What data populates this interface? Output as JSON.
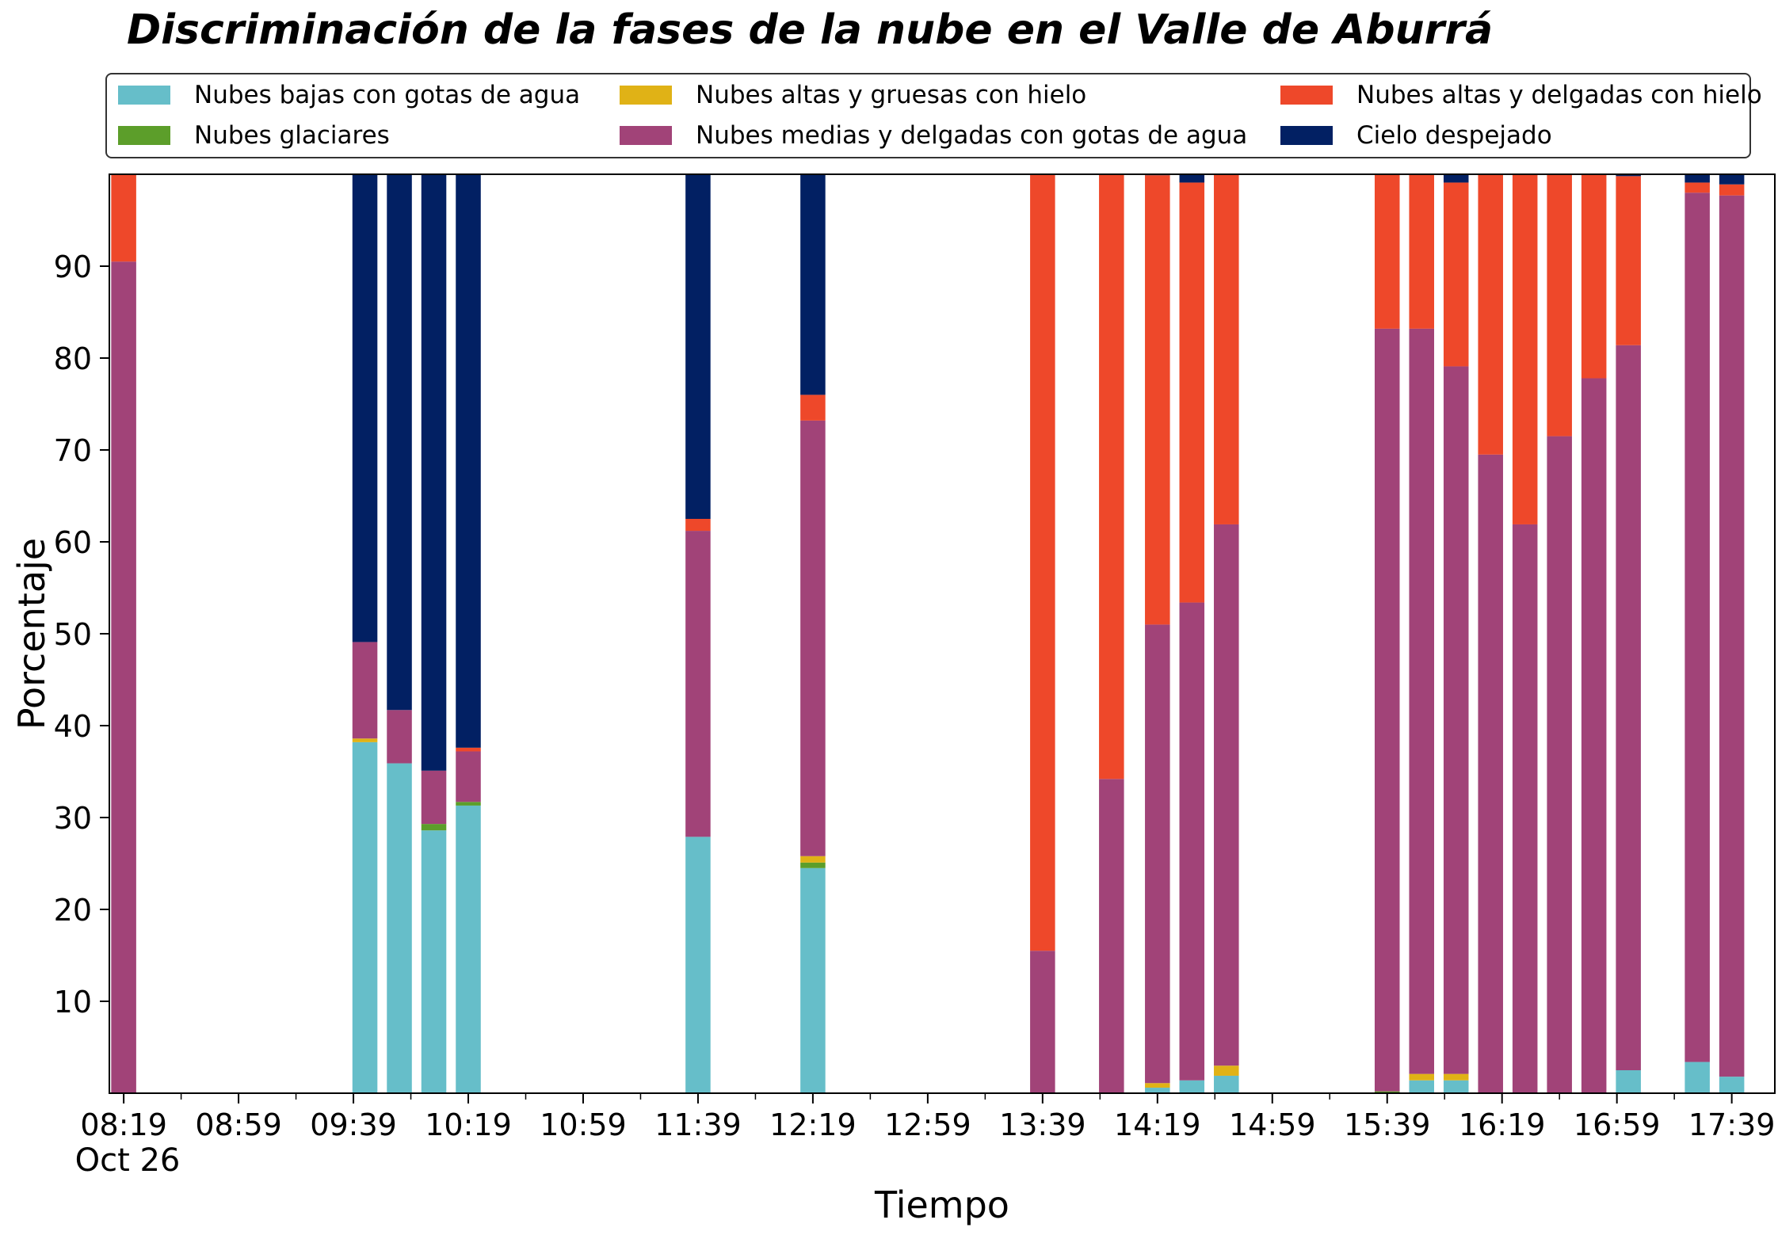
{
  "chart_data": {
    "type": "bar",
    "stacked": true,
    "title": "Discriminación de la fases de la nube en el Valle de Aburrá",
    "xlabel": "Tiempo",
    "ylabel": "Porcentaje",
    "ylim": [
      0,
      100
    ],
    "yticks": [
      10,
      20,
      30,
      40,
      50,
      60,
      70,
      80,
      90
    ],
    "x_range": [
      "08:14",
      "17:54"
    ],
    "x_date_label": "Oct 26",
    "x_tick_labels": [
      "08:19",
      "08:59",
      "09:39",
      "10:19",
      "10:59",
      "11:39",
      "12:19",
      "12:59",
      "13:39",
      "14:19",
      "14:59",
      "15:39",
      "16:19",
      "16:59",
      "17:39"
    ],
    "grid": false,
    "legend_position": "top",
    "colors": {
      "nubes_bajas": "#66bec9",
      "glaciares": "#5c9e2a",
      "altas_gruesas": "#e0b216",
      "medias_delgadas": "#a14378",
      "altas_delgadas": "#ee482a",
      "despejado": "#022063"
    },
    "series": [
      {
        "key": "nubes_bajas",
        "name": "Nubes bajas con gotas de agua"
      },
      {
        "key": "glaciares",
        "name": "Nubes glaciares"
      },
      {
        "key": "altas_gruesas",
        "name": "Nubes altas y gruesas con hielo"
      },
      {
        "key": "medias_delgadas",
        "name": "Nubes medias y delgadas con gotas de agua"
      },
      {
        "key": "altas_delgadas",
        "name": "Nubes altas y delgadas con hielo"
      },
      {
        "key": "despejado",
        "name": "Cielo despejado"
      }
    ],
    "bars": [
      {
        "x": "08:19",
        "values": [
          0,
          0,
          0,
          90.5,
          9.5,
          0
        ]
      },
      {
        "x": "09:43",
        "values": [
          38.2,
          0,
          0.4,
          10.5,
          0,
          50.9
        ]
      },
      {
        "x": "09:55",
        "values": [
          35.9,
          0,
          0,
          5.8,
          0,
          58.3
        ]
      },
      {
        "x": "10:07",
        "values": [
          28.6,
          0.7,
          0,
          5.8,
          0,
          64.9
        ]
      },
      {
        "x": "10:19",
        "values": [
          31.3,
          0.4,
          0,
          5.5,
          0.4,
          62.4
        ]
      },
      {
        "x": "11:39",
        "values": [
          27.9,
          0,
          0,
          33.3,
          1.3,
          37.5
        ]
      },
      {
        "x": "12:19",
        "values": [
          24.5,
          0.6,
          0.7,
          47.4,
          2.8,
          24.0
        ]
      },
      {
        "x": "13:39",
        "values": [
          0,
          0,
          0,
          15.5,
          84.5,
          0
        ]
      },
      {
        "x": "14:03",
        "values": [
          0,
          0,
          0,
          34.2,
          65.8,
          0
        ]
      },
      {
        "x": "14:19",
        "values": [
          0.6,
          0,
          0.5,
          49.9,
          48.9,
          0.1
        ]
      },
      {
        "x": "14:31",
        "values": [
          1.4,
          0,
          0,
          52.0,
          45.7,
          0.9
        ]
      },
      {
        "x": "14:43",
        "values": [
          1.9,
          0,
          1.1,
          58.9,
          38.1,
          0
        ]
      },
      {
        "x": "15:39",
        "values": [
          0,
          0.2,
          0,
          83.0,
          16.8,
          0
        ]
      },
      {
        "x": "15:51",
        "values": [
          1.4,
          0,
          0.7,
          81.1,
          16.8,
          0
        ]
      },
      {
        "x": "16:03",
        "values": [
          1.4,
          0,
          0.7,
          77.0,
          20.0,
          0.9
        ]
      },
      {
        "x": "16:15",
        "values": [
          0,
          0,
          0,
          69.5,
          30.5,
          0
        ]
      },
      {
        "x": "16:27",
        "values": [
          0,
          0,
          0,
          61.9,
          38.1,
          0
        ]
      },
      {
        "x": "16:39",
        "values": [
          0,
          0,
          0,
          71.5,
          28.5,
          0
        ]
      },
      {
        "x": "16:51",
        "values": [
          0,
          0,
          0,
          77.8,
          22.2,
          0
        ]
      },
      {
        "x": "17:03",
        "values": [
          2.5,
          0,
          0,
          78.9,
          18.4,
          0.2
        ]
      },
      {
        "x": "17:27",
        "values": [
          3.4,
          0,
          0,
          94.6,
          1.1,
          0.9
        ]
      },
      {
        "x": "17:39",
        "values": [
          1.8,
          0,
          0,
          95.9,
          1.2,
          1.1
        ]
      }
    ]
  }
}
